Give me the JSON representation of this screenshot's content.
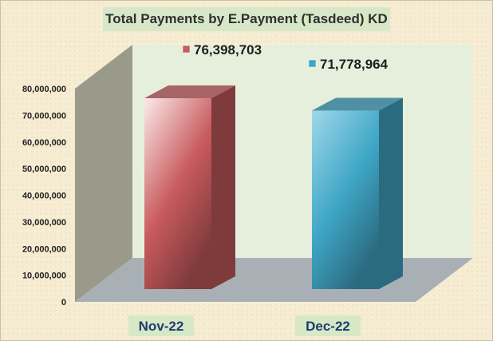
{
  "chart_data": {
    "type": "bar",
    "title": "Total Payments  by E.Payment (Tasdeed) KD",
    "categories": [
      "Nov-22",
      "Dec-22"
    ],
    "values": [
      76398703,
      71778964
    ],
    "data_labels": [
      "76,398,703",
      "71,778,964"
    ],
    "yticks": [
      "0",
      "10,000,000",
      "20,000,000",
      "30,000,000",
      "40,000,000",
      "50,000,000",
      "60,000,000",
      "70,000,000",
      "80,000,000"
    ],
    "ylim": [
      0,
      80000000
    ],
    "grid": false,
    "colors": {
      "bar_front": [
        "#c95b5e",
        "#3fa6c6"
      ],
      "bar_light": [
        "#fbeaea",
        "#9fd8ea"
      ],
      "bar_side": [
        "#7f3a3c",
        "#2b6b80"
      ],
      "bar_top": [
        "#a76466",
        "#4f90a4"
      ],
      "back_wall": "#e6efdb",
      "side_wall": "#9a9a8a",
      "floor": "#a9b0b5"
    }
  }
}
